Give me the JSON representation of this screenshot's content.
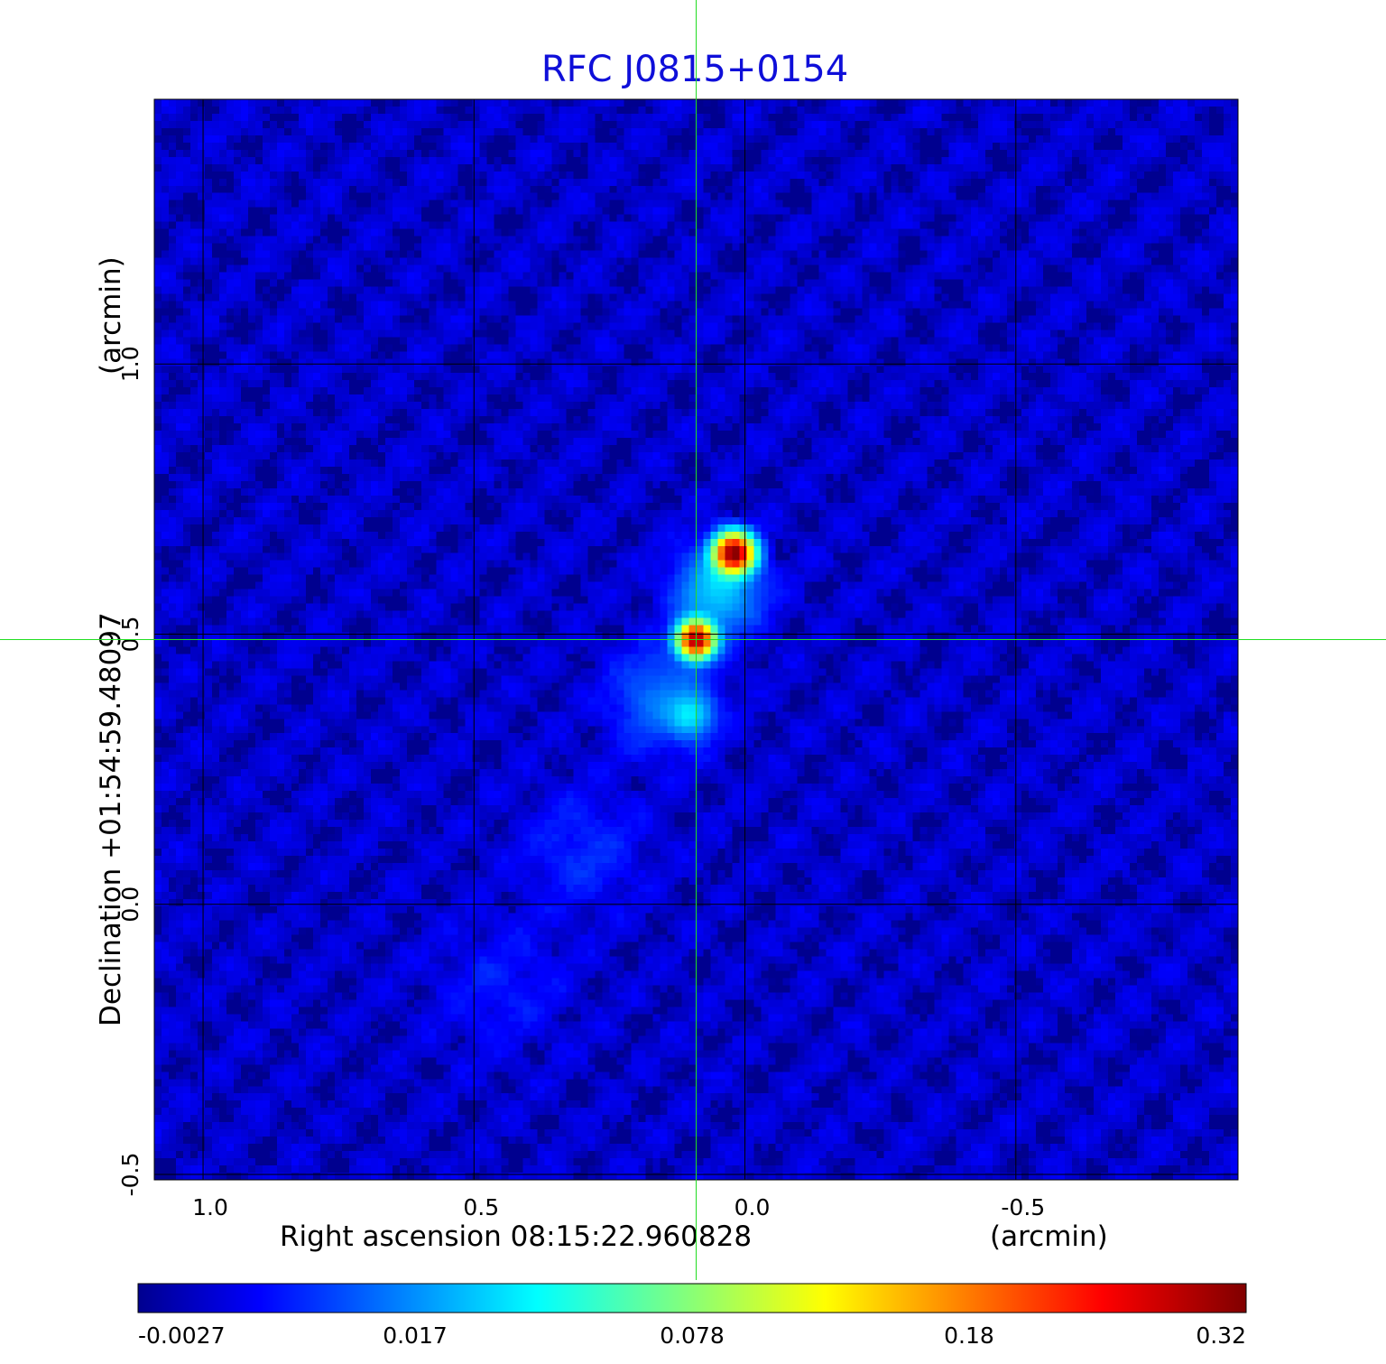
{
  "chart_data": {
    "type": "heatmap",
    "title": "RFC J0815+0154",
    "x_axis": {
      "label": "Right ascension  08:15:22.960828",
      "unit_label": "(arcmin)",
      "ticks": [
        1.0,
        0.5,
        0.0,
        -0.5
      ],
      "tick_labels": [
        "1.0",
        "0.5",
        "0.0",
        "-0.5"
      ],
      "range": [
        1.09,
        -0.91
      ],
      "grid": true
    },
    "y_axis": {
      "label": "Declination  +01:54:59.48097",
      "unit_label": "(arcmin)",
      "ticks": [
        -0.5,
        0.0,
        0.5,
        1.0
      ],
      "tick_labels": [
        "-0.5",
        "0.0",
        "0.5",
        "1.0"
      ],
      "range": [
        -0.51,
        1.49
      ],
      "grid": true
    },
    "crosshair": {
      "x": 0.09,
      "y": 0.49,
      "color": "#22dd22"
    },
    "sources": [
      {
        "x": 0.02,
        "y": 0.65,
        "peak": 0.32,
        "sigma": 0.022
      },
      {
        "x": 0.09,
        "y": 0.49,
        "peak": 0.3,
        "sigma": 0.02
      },
      {
        "x": 0.1,
        "y": 0.35,
        "peak": 0.03,
        "sigma": 0.025
      }
    ],
    "diffuse_emission": [
      {
        "x": 0.05,
        "y": 0.58,
        "peak": 0.03,
        "sigma": 0.05
      },
      {
        "x": 0.15,
        "y": 0.38,
        "peak": 0.015,
        "sigma": 0.06
      },
      {
        "x": 0.3,
        "y": 0.1,
        "peak": 0.006,
        "sigma": 0.07
      },
      {
        "x": 0.45,
        "y": -0.15,
        "peak": 0.004,
        "sigma": 0.08
      }
    ],
    "background_level": -0.0015,
    "colorbar": {
      "colormap": "jet",
      "min": -0.0027,
      "max": 0.32,
      "ticks": [
        -0.0027,
        0.017,
        0.078,
        0.18,
        0.32
      ],
      "tick_labels": [
        "-0.0027",
        "0.017",
        "0.078",
        "0.18",
        "0.32"
      ],
      "colors": [
        "#00008f",
        "#0000ff",
        "#00ffff",
        "#ffff00",
        "#ff0000",
        "#800000"
      ]
    },
    "grid_color": "#000000"
  }
}
